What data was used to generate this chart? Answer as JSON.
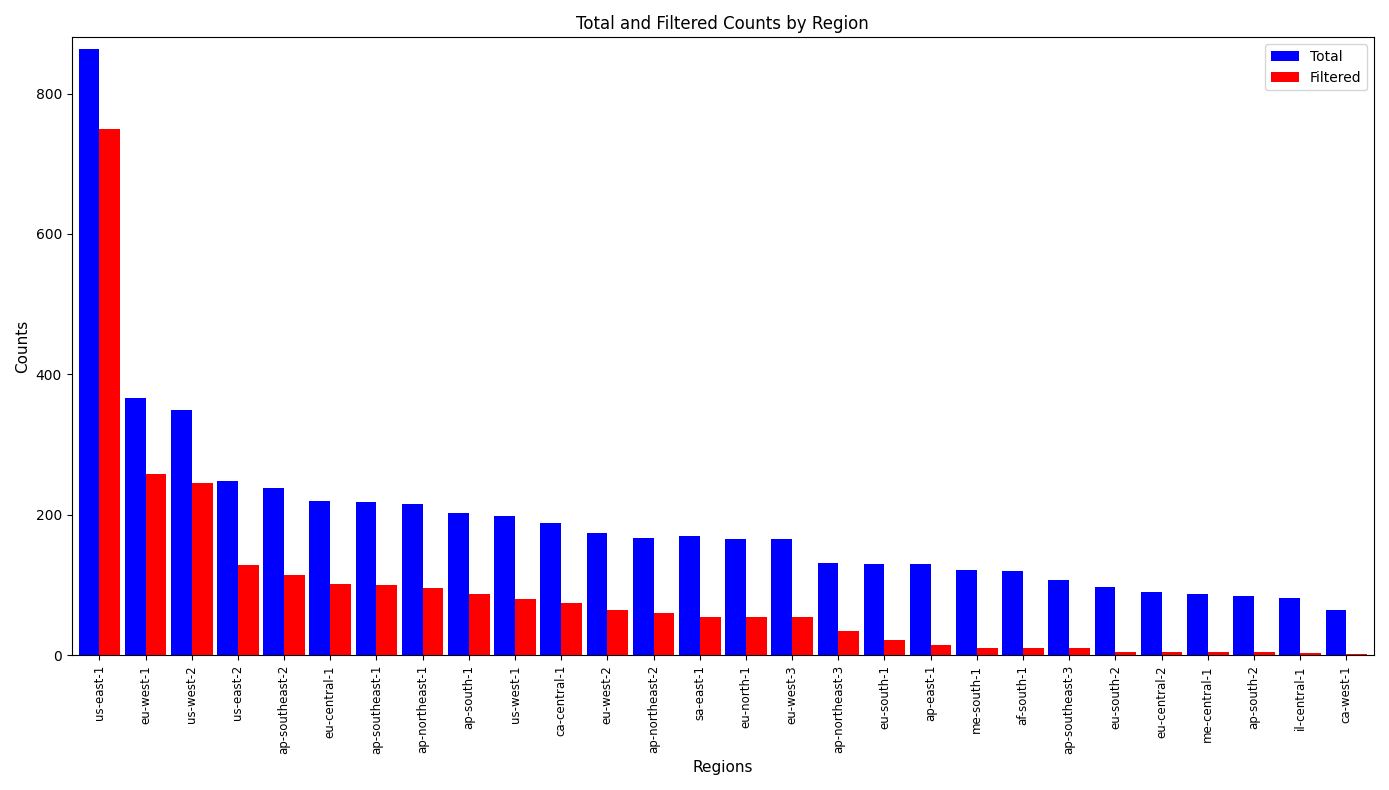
{
  "regions": [
    "us-east-1",
    "eu-west-1",
    "us-west-2",
    "us-east-2",
    "ap-southeast-2",
    "eu-central-1",
    "ap-southeast-1",
    "ap-northeast-1",
    "ap-south-1",
    "us-west-1",
    "ca-central-1",
    "eu-west-2",
    "ap-northeast-2",
    "sa-east-1",
    "eu-north-1",
    "eu-west-3",
    "ap-northeast-3",
    "eu-south-1",
    "ap-east-1",
    "me-south-1",
    "af-south-1",
    "ap-southeast-3",
    "eu-south-2",
    "eu-central-2",
    "me-central-1",
    "ap-south-2",
    "il-central-1",
    "ca-west-1"
  ],
  "total": [
    863,
    367,
    350,
    248,
    238,
    220,
    218,
    215,
    202,
    199,
    188,
    174,
    167,
    170,
    165,
    165,
    132,
    130,
    130,
    122,
    120,
    108,
    97,
    90,
    88,
    85,
    82,
    65
  ],
  "filtered": [
    750,
    258,
    246,
    128,
    114,
    102,
    100,
    96,
    88,
    80,
    75,
    65,
    60,
    55,
    55,
    55,
    35,
    22,
    15,
    10,
    10,
    10,
    5,
    5,
    5,
    5,
    4,
    2
  ],
  "title": "Total and Filtered Counts by Region",
  "xlabel": "Regions",
  "ylabel": "Counts",
  "bar_color_total": "#0000ff",
  "bar_color_filtered": "#ff0000",
  "legend_labels": [
    "Total",
    "Filtered"
  ],
  "ylim": [
    0,
    880
  ],
  "yticks": [
    0,
    200,
    400,
    600,
    800
  ],
  "bar_width": 0.45,
  "figsize": [
    13.89,
    7.9
  ],
  "dpi": 100
}
